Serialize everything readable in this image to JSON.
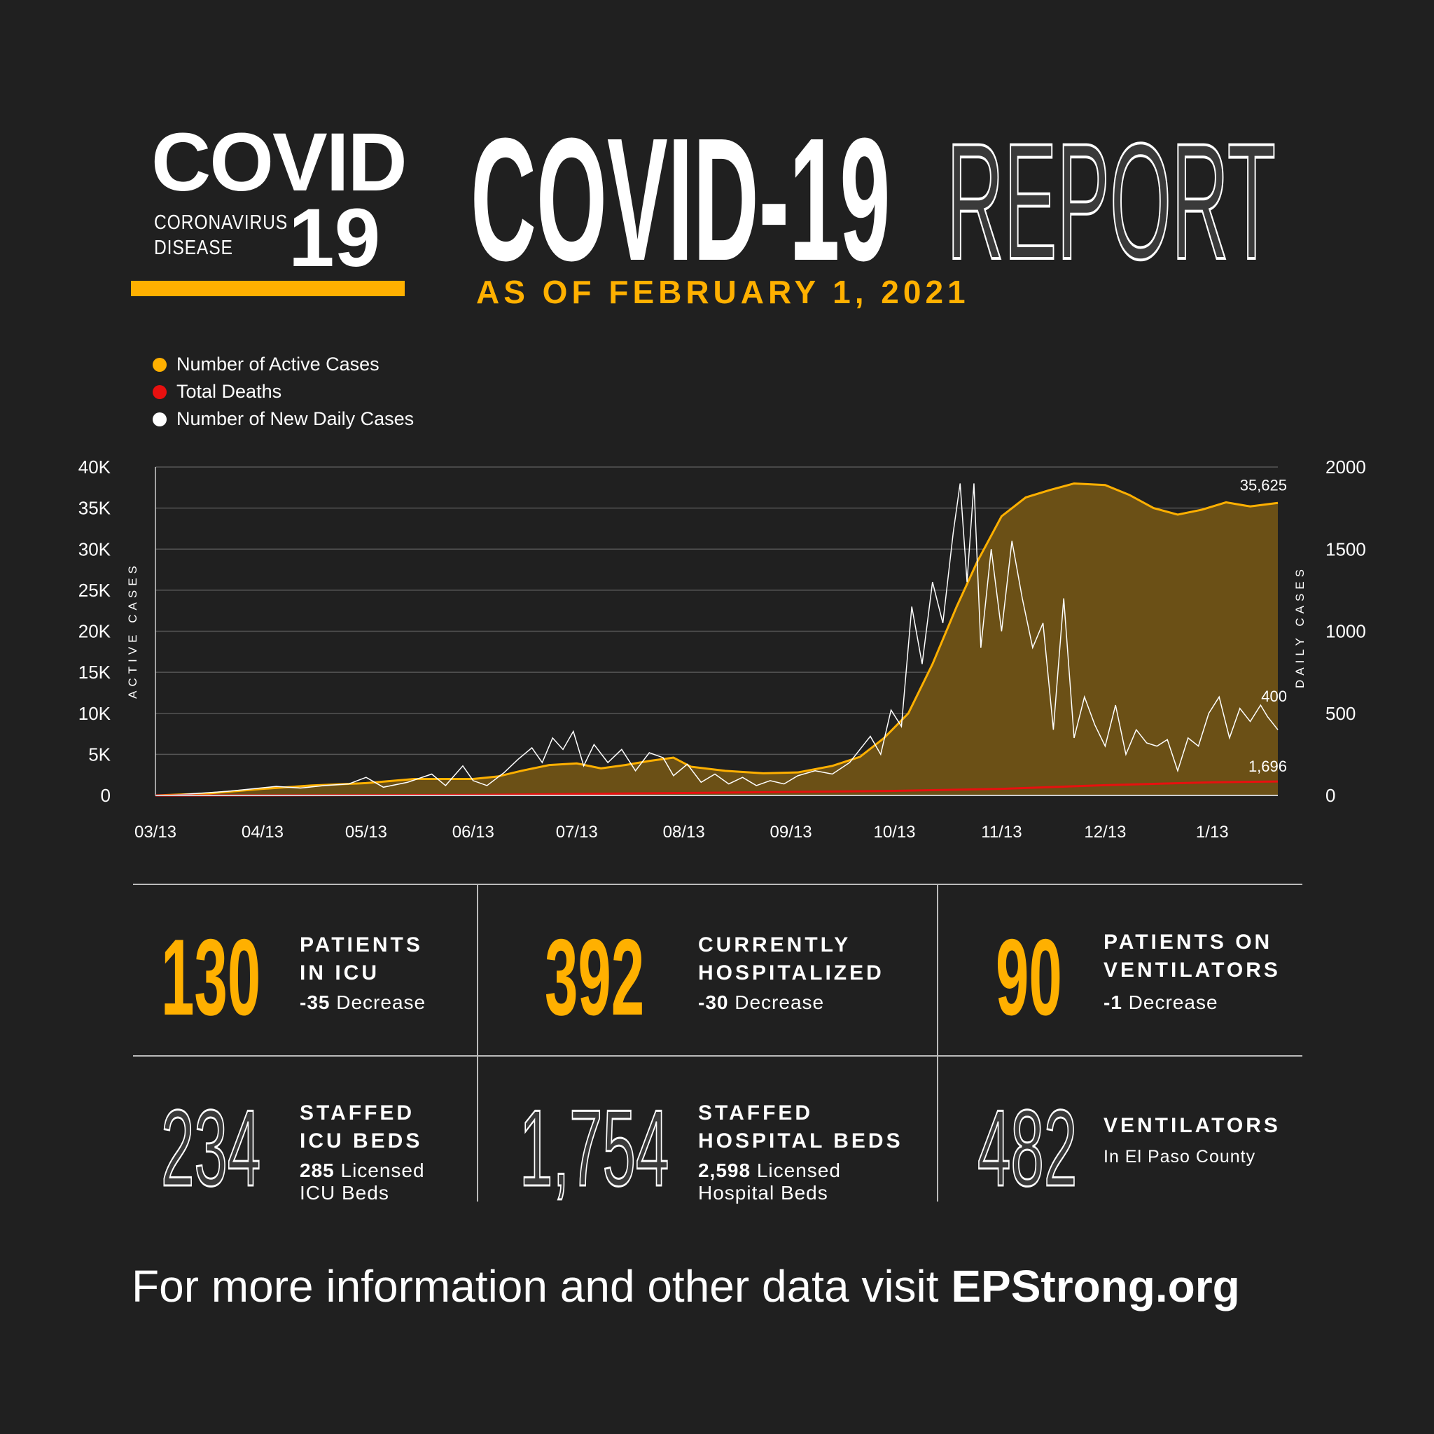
{
  "logo": {
    "word": "COVID",
    "sub_line1": "CORONAVIRUS",
    "sub_line2": "DISEASE",
    "number": "19"
  },
  "header": {
    "title_solid": "COVID-19",
    "title_outline": "REPORT",
    "date": "AS OF FEBRUARY 1, 2021"
  },
  "colors": {
    "background": "#202020",
    "accent": "#FFB000",
    "active_fill": "#6B5016",
    "deaths": "#E8100F",
    "daily": "#FFFFFF"
  },
  "chart_data": {
    "type": "line",
    "legend": [
      "Number of Active Cases",
      "Total Deaths",
      "Number of New Daily Cases"
    ],
    "legend_position": "top-left",
    "ylabel_left": "ACTIVE CASES",
    "ylabel_right": "DAILY CASES",
    "y_left_ticks": [
      "0",
      "5K",
      "10K",
      "15K",
      "20K",
      "25K",
      "30K",
      "35K",
      "40K"
    ],
    "y_right_ticks": [
      "0",
      "500",
      "1000",
      "1500",
      "2000"
    ],
    "ylim_left": [
      0,
      40000
    ],
    "ylim_right": [
      0,
      2000
    ],
    "x_ticks": [
      {
        "date": "2020-03-13",
        "label": "03/13"
      },
      {
        "date": "2020-04-13",
        "label": "04/13"
      },
      {
        "date": "2020-05-13",
        "label": "05/13"
      },
      {
        "date": "2020-06-13",
        "label": "06/13"
      },
      {
        "date": "2020-07-13",
        "label": "07/13"
      },
      {
        "date": "2020-08-13",
        "label": "08/13"
      },
      {
        "date": "2020-09-13",
        "label": "09/13"
      },
      {
        "date": "2020-10-13",
        "label": "10/13"
      },
      {
        "date": "2020-11-13",
        "label": "11/13"
      },
      {
        "date": "2020-12-13",
        "label": "12/13"
      },
      {
        "date": "2021-01-13",
        "label": "1/13"
      }
    ],
    "xlim": [
      "2020-03-13",
      "2021-02-01"
    ],
    "grid": true,
    "annotations": [
      {
        "series": "Number of Active Cases",
        "text": "35,625"
      },
      {
        "series": "Number of New Daily Cases",
        "text": "400"
      },
      {
        "series": "Total Deaths",
        "text": "1,696"
      }
    ],
    "series": [
      {
        "name": "Number of Active Cases",
        "axis": "left",
        "style": "area",
        "points": [
          [
            "2020-03-13",
            0
          ],
          [
            "2020-03-27",
            200
          ],
          [
            "2020-04-13",
            800
          ],
          [
            "2020-04-27",
            1200
          ],
          [
            "2020-05-13",
            1500
          ],
          [
            "2020-05-27",
            2000
          ],
          [
            "2020-06-13",
            2000
          ],
          [
            "2020-06-20",
            2300
          ],
          [
            "2020-06-27",
            3000
          ],
          [
            "2020-07-05",
            3700
          ],
          [
            "2020-07-13",
            3900
          ],
          [
            "2020-07-20",
            3300
          ],
          [
            "2020-07-27",
            3700
          ],
          [
            "2020-08-03",
            4200
          ],
          [
            "2020-08-10",
            4600
          ],
          [
            "2020-08-15",
            3500
          ],
          [
            "2020-08-25",
            3000
          ],
          [
            "2020-09-05",
            2700
          ],
          [
            "2020-09-15",
            2800
          ],
          [
            "2020-09-25",
            3600
          ],
          [
            "2020-10-03",
            4700
          ],
          [
            "2020-10-10",
            7000
          ],
          [
            "2020-10-17",
            10000
          ],
          [
            "2020-10-24",
            16000
          ],
          [
            "2020-10-31",
            23000
          ],
          [
            "2020-11-06",
            28500
          ],
          [
            "2020-11-13",
            34000
          ],
          [
            "2020-11-20",
            36300
          ],
          [
            "2020-11-27",
            37200
          ],
          [
            "2020-12-04",
            38000
          ],
          [
            "2020-12-13",
            37800
          ],
          [
            "2020-12-20",
            36600
          ],
          [
            "2020-12-27",
            35000
          ],
          [
            "2021-01-03",
            34200
          ],
          [
            "2021-01-10",
            34800
          ],
          [
            "2021-01-17",
            35700
          ],
          [
            "2021-01-24",
            35200
          ],
          [
            "2021-02-01",
            35625
          ]
        ]
      },
      {
        "name": "Total Deaths",
        "axis": "left",
        "style": "line",
        "points": [
          [
            "2020-03-13",
            0
          ],
          [
            "2020-04-13",
            10
          ],
          [
            "2020-06-13",
            60
          ],
          [
            "2020-08-13",
            300
          ],
          [
            "2020-10-13",
            550
          ],
          [
            "2020-11-13",
            800
          ],
          [
            "2020-12-13",
            1250
          ],
          [
            "2021-01-13",
            1600
          ],
          [
            "2021-02-01",
            1696
          ]
        ]
      },
      {
        "name": "Number of New Daily Cases",
        "axis": "right",
        "style": "line",
        "points": [
          [
            "2020-03-13",
            0
          ],
          [
            "2020-03-20",
            5
          ],
          [
            "2020-03-27",
            15
          ],
          [
            "2020-04-03",
            25
          ],
          [
            "2020-04-10",
            40
          ],
          [
            "2020-04-17",
            55
          ],
          [
            "2020-04-24",
            45
          ],
          [
            "2020-05-01",
            60
          ],
          [
            "2020-05-08",
            70
          ],
          [
            "2020-05-13",
            110
          ],
          [
            "2020-05-18",
            50
          ],
          [
            "2020-05-25",
            80
          ],
          [
            "2020-06-01",
            130
          ],
          [
            "2020-06-05",
            60
          ],
          [
            "2020-06-10",
            180
          ],
          [
            "2020-06-13",
            90
          ],
          [
            "2020-06-17",
            60
          ],
          [
            "2020-06-22",
            140
          ],
          [
            "2020-06-26",
            220
          ],
          [
            "2020-06-30",
            290
          ],
          [
            "2020-07-03",
            200
          ],
          [
            "2020-07-06",
            350
          ],
          [
            "2020-07-09",
            280
          ],
          [
            "2020-07-12",
            390
          ],
          [
            "2020-07-15",
            180
          ],
          [
            "2020-07-18",
            310
          ],
          [
            "2020-07-22",
            200
          ],
          [
            "2020-07-26",
            280
          ],
          [
            "2020-07-30",
            150
          ],
          [
            "2020-08-03",
            260
          ],
          [
            "2020-08-07",
            230
          ],
          [
            "2020-08-10",
            120
          ],
          [
            "2020-08-14",
            190
          ],
          [
            "2020-08-18",
            80
          ],
          [
            "2020-08-22",
            130
          ],
          [
            "2020-08-26",
            70
          ],
          [
            "2020-08-30",
            110
          ],
          [
            "2020-09-03",
            60
          ],
          [
            "2020-09-07",
            90
          ],
          [
            "2020-09-11",
            70
          ],
          [
            "2020-09-15",
            120
          ],
          [
            "2020-09-20",
            150
          ],
          [
            "2020-09-25",
            130
          ],
          [
            "2020-09-30",
            200
          ],
          [
            "2020-10-03",
            280
          ],
          [
            "2020-10-06",
            360
          ],
          [
            "2020-10-09",
            250
          ],
          [
            "2020-10-12",
            520
          ],
          [
            "2020-10-15",
            420
          ],
          [
            "2020-10-18",
            1150
          ],
          [
            "2020-10-21",
            800
          ],
          [
            "2020-10-24",
            1300
          ],
          [
            "2020-10-27",
            1050
          ],
          [
            "2020-10-30",
            1600
          ],
          [
            "2020-11-01",
            1900
          ],
          [
            "2020-11-03",
            1300
          ],
          [
            "2020-11-05",
            1900
          ],
          [
            "2020-11-07",
            900
          ],
          [
            "2020-11-10",
            1500
          ],
          [
            "2020-11-13",
            1000
          ],
          [
            "2020-11-16",
            1550
          ],
          [
            "2020-11-19",
            1200
          ],
          [
            "2020-11-22",
            900
          ],
          [
            "2020-11-25",
            1050
          ],
          [
            "2020-11-28",
            400
          ],
          [
            "2020-12-01",
            1200
          ],
          [
            "2020-12-04",
            350
          ],
          [
            "2020-12-07",
            600
          ],
          [
            "2020-12-10",
            430
          ],
          [
            "2020-12-13",
            300
          ],
          [
            "2020-12-16",
            550
          ],
          [
            "2020-12-19",
            250
          ],
          [
            "2020-12-22",
            400
          ],
          [
            "2020-12-25",
            320
          ],
          [
            "2020-12-28",
            300
          ],
          [
            "2020-12-31",
            340
          ],
          [
            "2021-01-03",
            150
          ],
          [
            "2021-01-06",
            350
          ],
          [
            "2021-01-09",
            300
          ],
          [
            "2021-01-12",
            500
          ],
          [
            "2021-01-15",
            600
          ],
          [
            "2021-01-18",
            350
          ],
          [
            "2021-01-21",
            530
          ],
          [
            "2021-01-24",
            450
          ],
          [
            "2021-01-27",
            550
          ],
          [
            "2021-01-29",
            480
          ],
          [
            "2021-02-01",
            400
          ]
        ]
      }
    ]
  },
  "stats": {
    "icu": {
      "value": "130",
      "label1": "PATIENTS",
      "label2": "IN ICU",
      "change": "-35",
      "change_text": " Decrease"
    },
    "hospitalized": {
      "value": "392",
      "label1": "CURRENTLY",
      "label2": "HOSPITALIZED",
      "change": "-30",
      "change_text": " Decrease"
    },
    "ventilators_in_use": {
      "value": "90",
      "label1": "PATIENTS ON",
      "label2": "VENTILATORS",
      "change": "-1",
      "change_text": " Decrease"
    },
    "icu_beds": {
      "value": "234",
      "label1": "STAFFED",
      "label2": "ICU BEDS",
      "licensed": "285",
      "licensed_text": " Licensed",
      "licensed_line2": "ICU Beds"
    },
    "hospital_beds": {
      "value": "1,754",
      "label1": "STAFFED",
      "label2": "HOSPITAL BEDS",
      "licensed": "2,598",
      "licensed_text": " Licensed",
      "licensed_line2": "Hospital Beds"
    },
    "ventilators": {
      "value": "482",
      "label1": "VENTILATORS",
      "sub": "In El Paso County"
    }
  },
  "footer": {
    "text": "For more information and other data visit ",
    "link": "EPStrong.org"
  }
}
